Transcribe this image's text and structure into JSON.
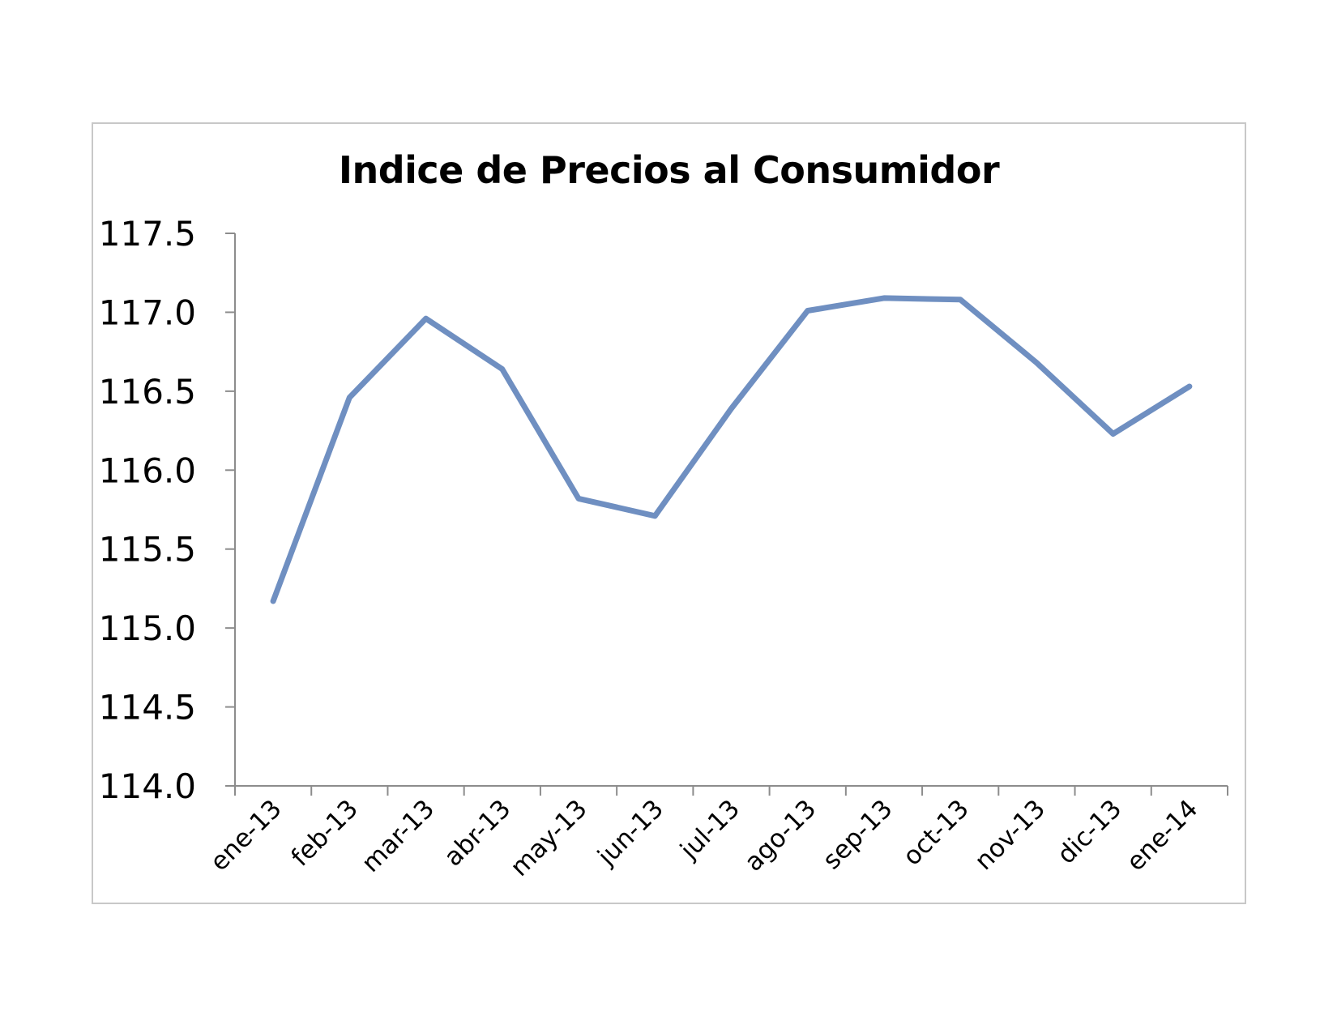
{
  "chart_data": {
    "type": "line",
    "title": "Indice de Precios al Consumidor",
    "xlabel": "",
    "ylabel": "",
    "categories": [
      "ene-13",
      "feb-13",
      "mar-13",
      "abr-13",
      "may-13",
      "jun-13",
      "jul-13",
      "ago-13",
      "sep-13",
      "oct-13",
      "nov-13",
      "dic-13",
      "ene-14"
    ],
    "series": [
      {
        "values": [
          115.17,
          116.46,
          116.96,
          116.64,
          115.82,
          115.71,
          116.39,
          117.01,
          117.09,
          117.08,
          116.68,
          116.23,
          116.53
        ],
        "color": "#6f8fc1"
      }
    ],
    "ylim": [
      114.0,
      117.5
    ],
    "yticks": [
      "114.0",
      "114.5",
      "115.0",
      "115.5",
      "116.0",
      "116.5",
      "117.0",
      "117.5"
    ],
    "grid": false,
    "legend": "none"
  }
}
